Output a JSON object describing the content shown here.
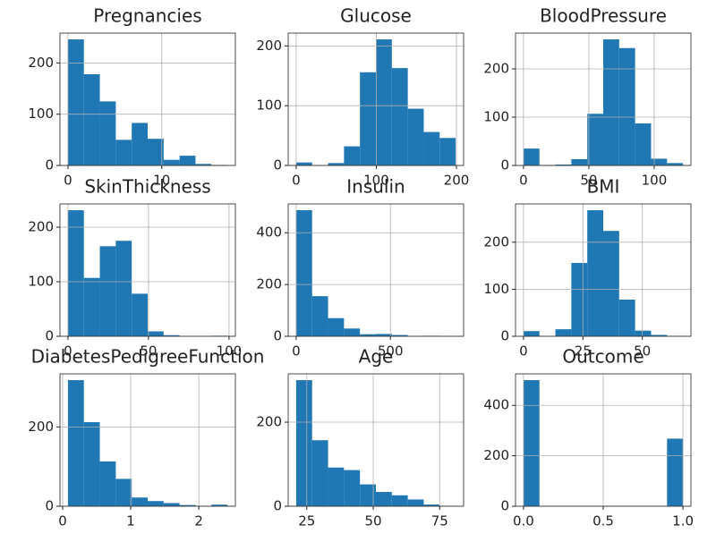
{
  "chart_data": [
    {
      "type": "histogram",
      "title": "Pregnancies",
      "color": "#1f77b4",
      "grid": true,
      "bins": [
        0,
        1.7,
        3.4,
        5.1,
        6.8,
        8.5,
        10.2,
        11.9,
        13.6,
        15.3,
        17
      ],
      "values": [
        246,
        178,
        125,
        50,
        83,
        52,
        11,
        19,
        3,
        1
      ],
      "xlim": [
        -0.85,
        17.85
      ],
      "xticks": [
        0,
        10
      ],
      "ylim": [
        0,
        258.3
      ],
      "yticks": [
        0,
        100,
        200
      ]
    },
    {
      "type": "histogram",
      "title": "Glucose",
      "color": "#1f77b4",
      "grid": true,
      "bins": [
        0,
        19.9,
        39.8,
        59.7,
        79.6,
        99.5,
        119.4,
        139.3,
        159.2,
        179.1,
        199
      ],
      "values": [
        5,
        0,
        4,
        32,
        156,
        211,
        163,
        95,
        56,
        46
      ],
      "xlim": [
        -9.95,
        208.95
      ],
      "xticks": [
        0,
        100,
        200
      ],
      "ylim": [
        0,
        221.55
      ],
      "yticks": [
        0,
        100,
        200
      ]
    },
    {
      "type": "histogram",
      "title": "BloodPressure",
      "color": "#1f77b4",
      "grid": true,
      "bins": [
        0,
        12.2,
        24.4,
        36.6,
        48.8,
        61,
        73.2,
        85.4,
        97.6,
        109.8,
        122
      ],
      "values": [
        35,
        1,
        2,
        13,
        107,
        261,
        243,
        87,
        14,
        5
      ],
      "xlim": [
        -6.1,
        128.1
      ],
      "xticks": [
        0,
        50,
        100
      ],
      "ylim": [
        0,
        274.05
      ],
      "yticks": [
        0,
        100,
        200
      ]
    },
    {
      "type": "histogram",
      "title": "SkinThickness",
      "color": "#1f77b4",
      "grid": true,
      "bins": [
        0,
        9.9,
        19.8,
        29.7,
        39.6,
        49.5,
        59.4,
        69.3,
        79.2,
        89.1,
        99
      ],
      "values": [
        231,
        107,
        165,
        175,
        78,
        9,
        2,
        0,
        0,
        1
      ],
      "xlim": [
        -4.95,
        103.95
      ],
      "xticks": [
        0,
        50,
        100
      ],
      "ylim": [
        0,
        242.55
      ],
      "yticks": [
        0,
        100,
        200
      ]
    },
    {
      "type": "histogram",
      "title": "Insulin",
      "color": "#1f77b4",
      "grid": true,
      "bins": [
        0,
        84.6,
        169.2,
        253.8,
        338.4,
        423,
        507.6,
        592.2,
        676.8,
        761.4,
        846
      ],
      "values": [
        487,
        155,
        70,
        30,
        8,
        9,
        5,
        1,
        2,
        1
      ],
      "xlim": [
        -42.3,
        888.3
      ],
      "xticks": [
        0,
        500
      ],
      "ylim": [
        0,
        511.35
      ],
      "yticks": [
        0,
        200,
        400
      ]
    },
    {
      "type": "histogram",
      "title": "BMI",
      "color": "#1f77b4",
      "grid": true,
      "bins": [
        0,
        6.71,
        13.42,
        20.13,
        26.84,
        33.55,
        40.26,
        46.97,
        53.68,
        60.39,
        67.1
      ],
      "values": [
        11,
        0,
        15,
        156,
        268,
        224,
        78,
        12,
        3,
        1
      ],
      "xlim": [
        -3.355,
        70.455
      ],
      "xticks": [
        0,
        25,
        50
      ],
      "ylim": [
        0,
        281.4
      ],
      "yticks": [
        0,
        100,
        200
      ]
    },
    {
      "type": "histogram",
      "title": "DiabetesPedigreeFunction",
      "color": "#1f77b4",
      "grid": true,
      "bins": [
        0.078,
        0.3122,
        0.5464,
        0.7806,
        1.0148,
        1.249,
        1.4832,
        1.7174,
        1.9516,
        2.1858,
        2.42
      ],
      "values": [
        318,
        212,
        113,
        69,
        22,
        13,
        8,
        3,
        1,
        4
      ],
      "xlim": [
        -0.0391,
        2.5371
      ],
      "xticks": [
        0,
        1,
        2
      ],
      "ylim": [
        0,
        333.9
      ],
      "yticks": [
        0,
        200
      ]
    },
    {
      "type": "histogram",
      "title": "Age",
      "color": "#1f77b4",
      "grid": true,
      "bins": [
        21,
        27,
        33,
        39,
        45,
        51,
        57,
        63,
        69,
        75,
        81
      ],
      "values": [
        300,
        157,
        92,
        86,
        52,
        34,
        26,
        16,
        4,
        1
      ],
      "xlim": [
        18,
        84
      ],
      "xticks": [
        25,
        50,
        75
      ],
      "ylim": [
        0,
        315
      ],
      "yticks": [
        0,
        200
      ]
    },
    {
      "type": "histogram",
      "title": "Outcome",
      "color": "#1f77b4",
      "grid": true,
      "bins": [
        0,
        0.1,
        0.2,
        0.3,
        0.4,
        0.5,
        0.6,
        0.7,
        0.8,
        0.9,
        1
      ],
      "values": [
        500,
        0,
        0,
        0,
        0,
        0,
        0,
        0,
        0,
        268
      ],
      "xlim": [
        -0.05,
        1.05
      ],
      "xticks": [
        {
          "value": 0,
          "label": "0.0"
        },
        {
          "value": 0.5,
          "label": "0.5"
        },
        {
          "value": 1,
          "label": "1.0"
        }
      ],
      "ylim": [
        0,
        525
      ],
      "yticks": [
        0,
        200,
        400
      ]
    }
  ]
}
